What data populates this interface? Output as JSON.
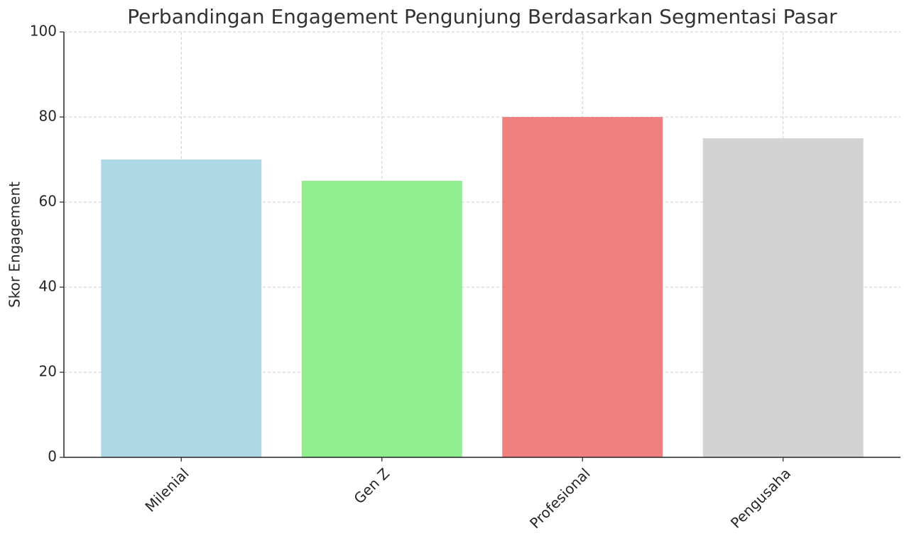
{
  "chart_data": {
    "type": "bar",
    "title": "Perbandingan Engagement Pengunjung Berdasarkan Segmentasi Pasar",
    "y_label": "Skor Engagement",
    "categories": [
      "Milenial",
      "Gen Z",
      "Profesional",
      "Pengusaha"
    ],
    "values": [
      70,
      65,
      80,
      75
    ],
    "colors": [
      "#add8e6",
      "#90ee90",
      "#f08080",
      "#d3d3d3"
    ],
    "ylim": [
      0,
      100
    ],
    "yticks": [
      0,
      20,
      40,
      60,
      80,
      100
    ],
    "grid": true
  }
}
